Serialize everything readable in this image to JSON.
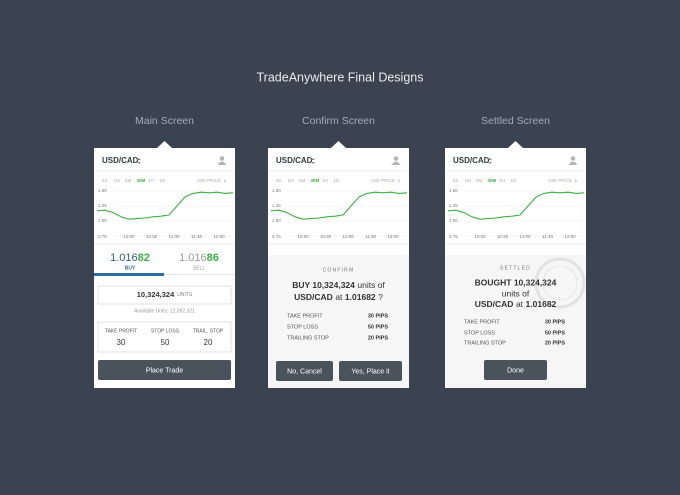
{
  "title": "TradeAnywhere Final Designs",
  "chart": {
    "pair": "USD/CAD",
    "timeframes": [
      "5S",
      "1M",
      "5M",
      "30M",
      "1H",
      "1D"
    ],
    "active_timeframe": "30M",
    "price_type": "ASK PRICE",
    "ylim": [
      0.75,
      1.5
    ],
    "yticks": [
      {
        "value": 1.5,
        "label": "1.50"
      },
      {
        "value": 1.25,
        "label": "1.25"
      },
      {
        "value": 1.0,
        "label": "1.00"
      },
      {
        "value": 0.75,
        "label": "0.75"
      }
    ],
    "x_labels": [
      "10:00",
      "10:30",
      "11:00",
      "11:30",
      "12:00"
    ],
    "values": [
      1.17,
      1.18,
      1.14,
      1.07,
      1.03,
      1.04,
      1.05,
      1.07,
      1.08,
      1.1,
      1.25,
      1.4,
      1.46,
      1.48,
      1.47,
      1.48,
      1.46,
      1.47
    ],
    "color": "#3cb043"
  },
  "screens": {
    "main": {
      "name": "Main Screen",
      "buy": {
        "price": "1.016",
        "pips": "82",
        "label": "BUY"
      },
      "sell": {
        "price": "1.016",
        "pips": "86",
        "label": "SELL"
      },
      "units": "10,324,324",
      "units_label": "UNITS",
      "available": "Available Units: 12,092,321",
      "settings": [
        {
          "label": "TAKE PROFIT",
          "value": 30
        },
        {
          "label": "STOP LOSS",
          "value": 50
        },
        {
          "label": "TRAIL. STOP",
          "value": 20
        }
      ],
      "button": "Place Trade"
    },
    "confirm": {
      "name": "Confirm Screen",
      "heading": "CONFIRM",
      "action": "BUY 10,324,324",
      "units_of": "units of",
      "pair": "USD/CAD",
      "at": "at",
      "price": "1.01682",
      "question": "?",
      "rows": [
        {
          "label": "TAKE PROFIT",
          "value": "30 PIPS"
        },
        {
          "label": "STOP LOSS",
          "value": "50 PIPS"
        },
        {
          "label": "TRAILING STOP",
          "value": "20 PIPS"
        }
      ],
      "cancel": "No, Cancel",
      "confirm": "Yes, Place it"
    },
    "settled": {
      "name": "Settled Screen",
      "heading": "SETTLED",
      "action": "BOUGHT 10,324,324",
      "units_of": "units of",
      "pair": "USD/CAD",
      "at": "at",
      "price": "1.01682",
      "rows": [
        {
          "label": "TAKE PROFIT",
          "value": "30 PIPS"
        },
        {
          "label": "STOP LOSS",
          "value": "50 PIPS"
        },
        {
          "label": "TRAILING STOP",
          "value": "20 PIPS"
        }
      ],
      "button": "Done"
    }
  }
}
